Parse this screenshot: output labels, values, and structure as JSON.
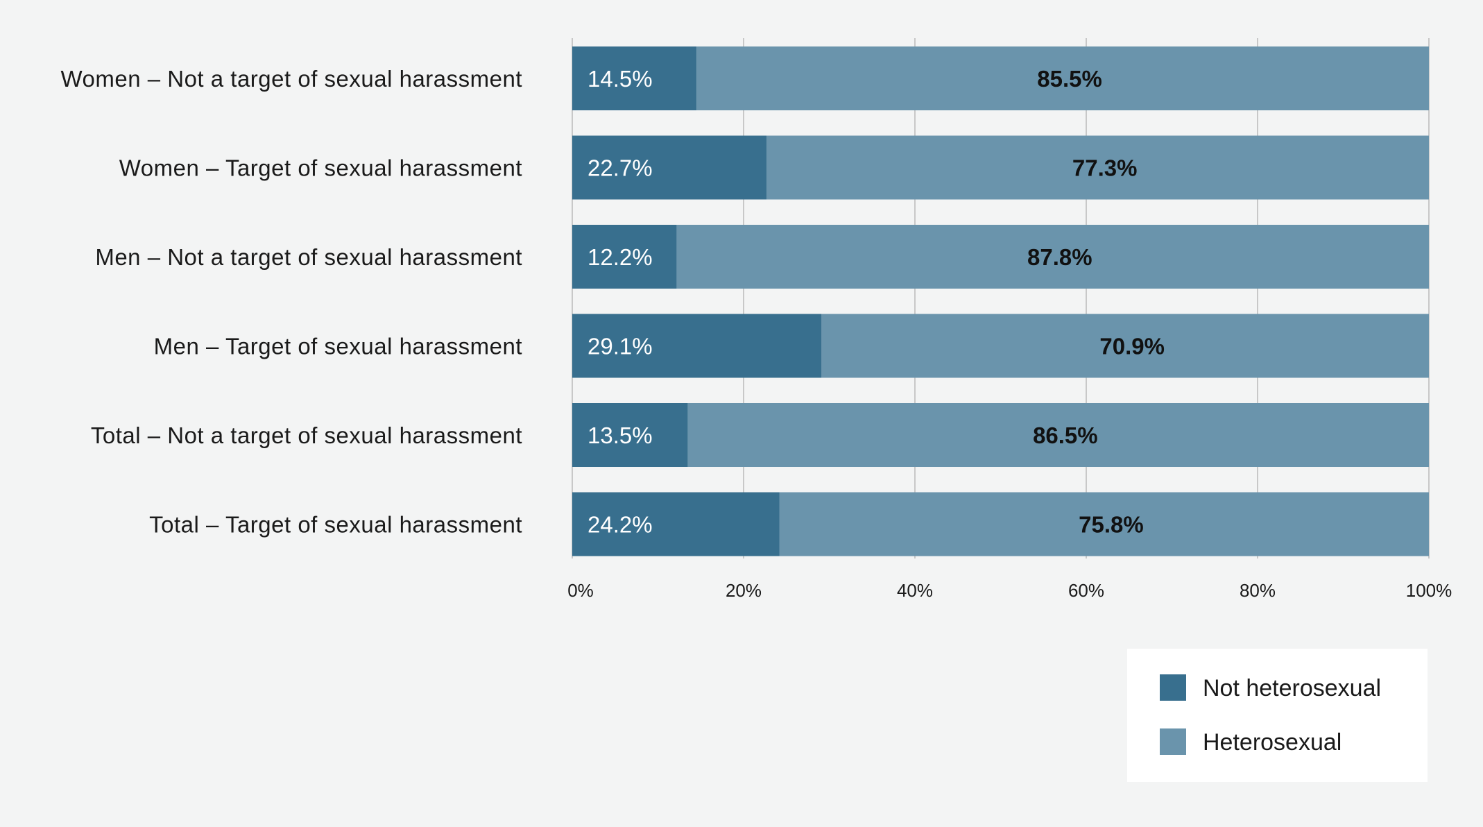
{
  "chart_data": {
    "type": "bar",
    "orientation": "horizontal",
    "stacked": true,
    "categories": [
      "Women – Not a target of sexual harassment",
      "Women – Target of sexual harassment",
      "Men – Not a target of sexual harassment",
      "Men – Target of sexual harassment",
      "Total – Not a target of sexual harassment",
      "Total – Target of sexual harassment"
    ],
    "series": [
      {
        "name": "Not heterosexual",
        "color": "#386f8e",
        "values": [
          14.5,
          22.7,
          12.2,
          29.1,
          13.5,
          24.2
        ],
        "labels": [
          "14.5%",
          "22.7%",
          "12.2%",
          "29.1%",
          "13.5%",
          "24.2%"
        ]
      },
      {
        "name": "Heterosexual",
        "color": "#6a94ac",
        "values": [
          85.5,
          77.3,
          87.8,
          70.9,
          86.5,
          75.8
        ],
        "labels": [
          "85.5%",
          "77.3%",
          "87.8%",
          "70.9%",
          "86.5%",
          "75.8%"
        ]
      }
    ],
    "xlim": [
      0,
      100
    ],
    "x_ticks": [
      "0%",
      "20%",
      "40%",
      "60%",
      "80%",
      "100%"
    ],
    "grid": true,
    "legend_position": "bottom-right",
    "background_color": "#f3f4f4",
    "grid_color": "#c8c8c8"
  }
}
